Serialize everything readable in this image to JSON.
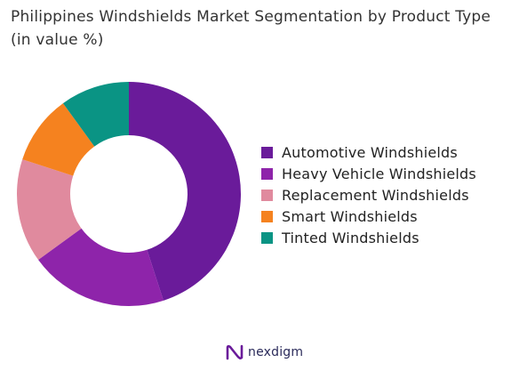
{
  "chart_data": {
    "type": "pie",
    "title": "Philippines Windshields Market Segmentation by Product Type (in value %)",
    "categories": [
      "Automotive Windshields",
      "Heavy Vehicle Windshields",
      "Replacement Windshields",
      "Smart Windshields",
      "Tinted Windshields"
    ],
    "values": [
      45,
      20,
      15,
      10,
      10
    ],
    "colors": [
      "#6a1b9a",
      "#8e24aa",
      "#e08a9e",
      "#f5821f",
      "#0a9484"
    ],
    "donut": true,
    "legend_position": "right"
  },
  "brand": {
    "name": "nexdigm",
    "icon": "nexdigm-logo-icon",
    "color": "#6a1b9a"
  }
}
